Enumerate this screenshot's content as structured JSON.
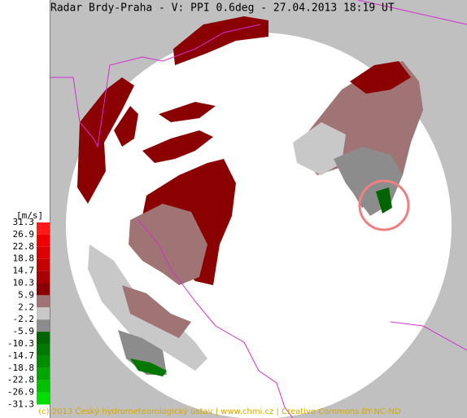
{
  "header": {
    "title": "Radar Brdy-Praha - V: PPI  0.6deg - 27.04.2013 18:19 UT"
  },
  "legend": {
    "unit": "[m/s]",
    "labels": [
      "31.3",
      "26.9",
      "22.8",
      "18.8",
      "14.7",
      "10.3",
      "5.9",
      "2.2",
      "-2.2",
      "-5.9",
      "-10.3",
      "-14.7",
      "-18.8",
      "-22.8",
      "-26.9",
      "-31.3"
    ],
    "colors": [
      "#ff1a1a",
      "#ee0000",
      "#dc0000",
      "#c40000",
      "#a80000",
      "#8b0000",
      "#a07474",
      "#c8c8c8",
      "#8c8c8c",
      "#006400",
      "#007800",
      "#008e00",
      "#00a600",
      "#00c000",
      "#00de00"
    ]
  },
  "footer": {
    "copyright": "(c) 2013  Český hydrometeorologický ústav | www.chmi.cz | Creative Commons BY-NC-ND"
  }
}
